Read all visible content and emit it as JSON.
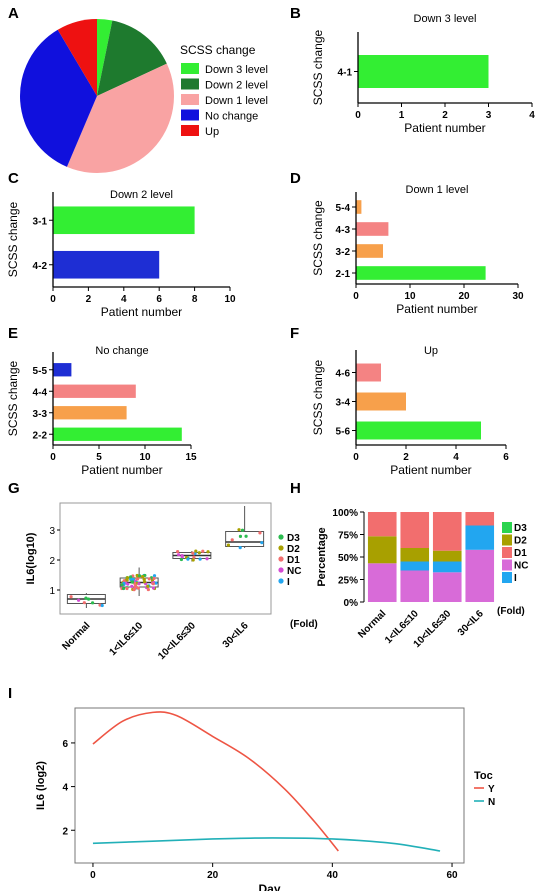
{
  "chart_data": [
    {
      "panel": "A",
      "type": "pie",
      "legend_title": "SCSS change",
      "legend_position": "right",
      "categories": [
        "Down 3 level",
        "Down 2 level",
        "Down 1 level",
        "No change",
        "Up"
      ],
      "colors": [
        "#33ee33",
        "#1e7a2e",
        "#f9a3a3",
        "#1010dd",
        "#ee1111"
      ],
      "values": [
        3,
        14,
        36,
        33,
        8
      ]
    },
    {
      "panel": "B",
      "type": "bar",
      "orientation": "horizontal",
      "title": "Down 3 level",
      "xlabel": "Patient number",
      "ylabel": "SCSS change",
      "categories": [
        "4-1"
      ],
      "values": [
        3
      ],
      "colors": [
        "#33ee33"
      ],
      "xlim": [
        0,
        4
      ],
      "xticks": [
        0,
        1,
        2,
        3,
        4
      ]
    },
    {
      "panel": "C",
      "type": "bar",
      "orientation": "horizontal",
      "title": "Down 2 level",
      "xlabel": "Patient number",
      "ylabel": "SCSS change",
      "categories": [
        "3-1",
        "4-2"
      ],
      "values": [
        8,
        6
      ],
      "colors": [
        "#33ee33",
        "#1e2ed4"
      ],
      "xlim": [
        0,
        10
      ],
      "xticks": [
        0,
        2,
        4,
        6,
        8,
        10
      ]
    },
    {
      "panel": "D",
      "type": "bar",
      "orientation": "horizontal",
      "title": "Down 1 level",
      "xlabel": "Patient number",
      "ylabel": "SCSS change",
      "categories": [
        "5-4",
        "4-3",
        "3-2",
        "2-1"
      ],
      "values": [
        1,
        6,
        5,
        24
      ],
      "colors": [
        "#f7a04b",
        "#f48383",
        "#f7a04b",
        "#33ee33"
      ],
      "xlim": [
        0,
        30
      ],
      "xticks": [
        0,
        10,
        20,
        30
      ]
    },
    {
      "panel": "E",
      "type": "bar",
      "orientation": "horizontal",
      "title": "No change",
      "xlabel": "Patient number",
      "ylabel": "SCSS change",
      "categories": [
        "5-5",
        "4-4",
        "3-3",
        "2-2"
      ],
      "values": [
        2,
        9,
        8,
        14
      ],
      "colors": [
        "#1e2ed4",
        "#f48383",
        "#f7a04b",
        "#33ee33"
      ],
      "xlim": [
        0,
        15
      ],
      "xticks": [
        0,
        5,
        10,
        15
      ]
    },
    {
      "panel": "F",
      "type": "bar",
      "orientation": "horizontal",
      "title": "Up",
      "xlabel": "Patient number",
      "ylabel": "SCSS change",
      "categories": [
        "4-6",
        "3-4",
        "5-6"
      ],
      "values": [
        1,
        2,
        5
      ],
      "colors": [
        "#f48383",
        "#f7a04b",
        "#33ee33"
      ],
      "xlim": [
        0,
        6
      ],
      "xticks": [
        0,
        2,
        4,
        6
      ]
    },
    {
      "panel": "G",
      "type": "scatter",
      "subtype": "boxplot",
      "ylabel": "IL6(log10)",
      "categories": [
        "Normal",
        "1<IL6≤10",
        "10<IL6≤30",
        "30<IL6"
      ],
      "unit_label": "(Fold)",
      "ylim": [
        0.2,
        3.9
      ],
      "yticks": [
        1,
        2,
        3
      ],
      "boxes": [
        {
          "min": 0.4,
          "q1": 0.55,
          "median": 0.7,
          "q3": 0.85,
          "max": 0.9
        },
        {
          "min": 0.8,
          "q1": 1.1,
          "median": 1.25,
          "q3": 1.4,
          "max": 1.75
        },
        {
          "min": 1.95,
          "q1": 2.05,
          "median": 2.15,
          "q3": 2.25,
          "max": 2.3
        },
        {
          "min": 2.4,
          "q1": 2.45,
          "median": 2.6,
          "q3": 2.95,
          "max": 3.8
        }
      ],
      "legend": [
        "D3",
        "D2",
        "D1",
        "NC",
        "I"
      ],
      "legend_colors": [
        "#2bbb4f",
        "#a8a000",
        "#f26e6e",
        "#d44bd4",
        "#22a6f0"
      ]
    },
    {
      "panel": "H",
      "type": "bar",
      "subtype": "stacked-percent",
      "ylabel": "Percentage",
      "categories": [
        "Normal",
        "1<IL6≤10",
        "10<IL6≤30",
        "30<IL6"
      ],
      "unit_label": "(Fold)",
      "yticks": [
        "0%",
        "25%",
        "50%",
        "75%",
        "100%"
      ],
      "series": [
        {
          "name": "NC",
          "color": "#d86bd8",
          "values": [
            43,
            35,
            33,
            58
          ]
        },
        {
          "name": "I",
          "color": "#22a6f0",
          "values": [
            0,
            10,
            12,
            27
          ]
        },
        {
          "name": "D3",
          "color": "#2bd44f",
          "values": [
            0,
            0,
            0,
            0
          ]
        },
        {
          "name": "D2",
          "color": "#a8a000",
          "values": [
            30,
            15,
            12,
            0
          ]
        },
        {
          "name": "D1",
          "color": "#f26e6e",
          "values": [
            27,
            40,
            43,
            15
          ]
        }
      ],
      "legend": [
        "D3",
        "D2",
        "D1",
        "NC",
        "I"
      ],
      "legend_colors": [
        "#2bd44f",
        "#a8a000",
        "#f26e6e",
        "#d86bd8",
        "#22a6f0"
      ]
    },
    {
      "panel": "I",
      "type": "line",
      "xlabel": "Day",
      "ylabel": "IL6 (log2)",
      "legend_title": "Toc",
      "xlim": [
        -3,
        62
      ],
      "ylim": [
        0.5,
        7.6
      ],
      "xticks": [
        0,
        20,
        40,
        60
      ],
      "yticks": [
        2,
        4,
        6
      ],
      "series": [
        {
          "name": "Y",
          "color": "#ee5544",
          "x": [
            0,
            5,
            10,
            14,
            20,
            26,
            32,
            37,
            41
          ],
          "y": [
            5.95,
            7.0,
            7.4,
            7.25,
            6.3,
            5.3,
            3.9,
            2.4,
            1.05
          ]
        },
        {
          "name": "N",
          "color": "#22b0b8",
          "x": [
            0,
            10,
            20,
            30,
            40,
            50,
            58
          ],
          "y": [
            1.4,
            1.5,
            1.6,
            1.65,
            1.6,
            1.4,
            1.05
          ]
        }
      ]
    }
  ]
}
